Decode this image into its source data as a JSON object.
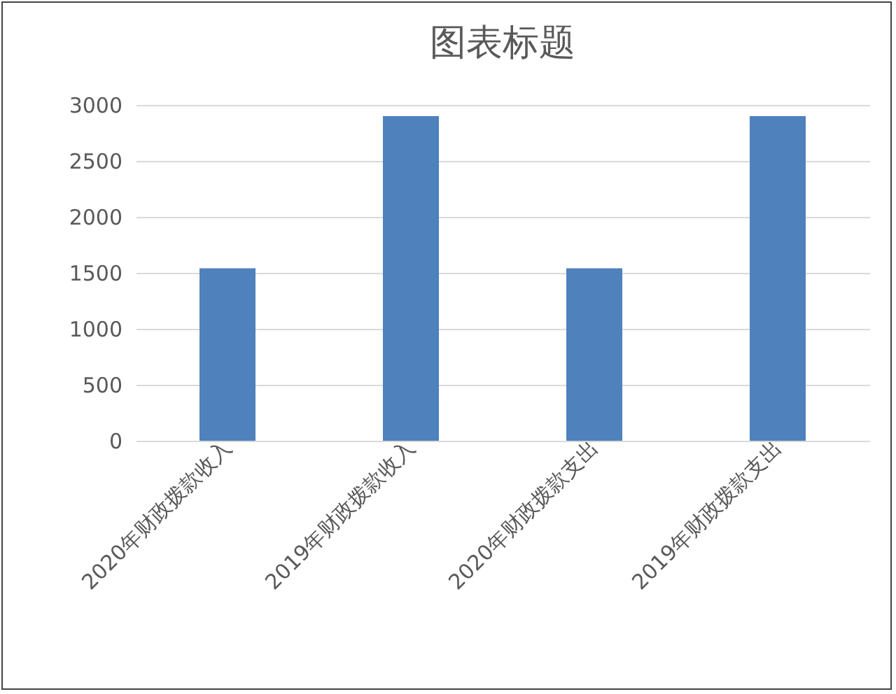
{
  "chart_data": {
    "type": "bar",
    "title": "图表标题",
    "categories": [
      "2020年财政拨款收入",
      "2019年财政拨款收入",
      "2020年财政拨款支出",
      "2019年财政拨款支出"
    ],
    "values": [
      1540,
      2900,
      1540,
      2900
    ],
    "color": "#4f81bd",
    "ylim": [
      0,
      3000
    ],
    "yticks": [
      0,
      500,
      1000,
      1500,
      2000,
      2500,
      3000
    ],
    "grid": "y"
  }
}
